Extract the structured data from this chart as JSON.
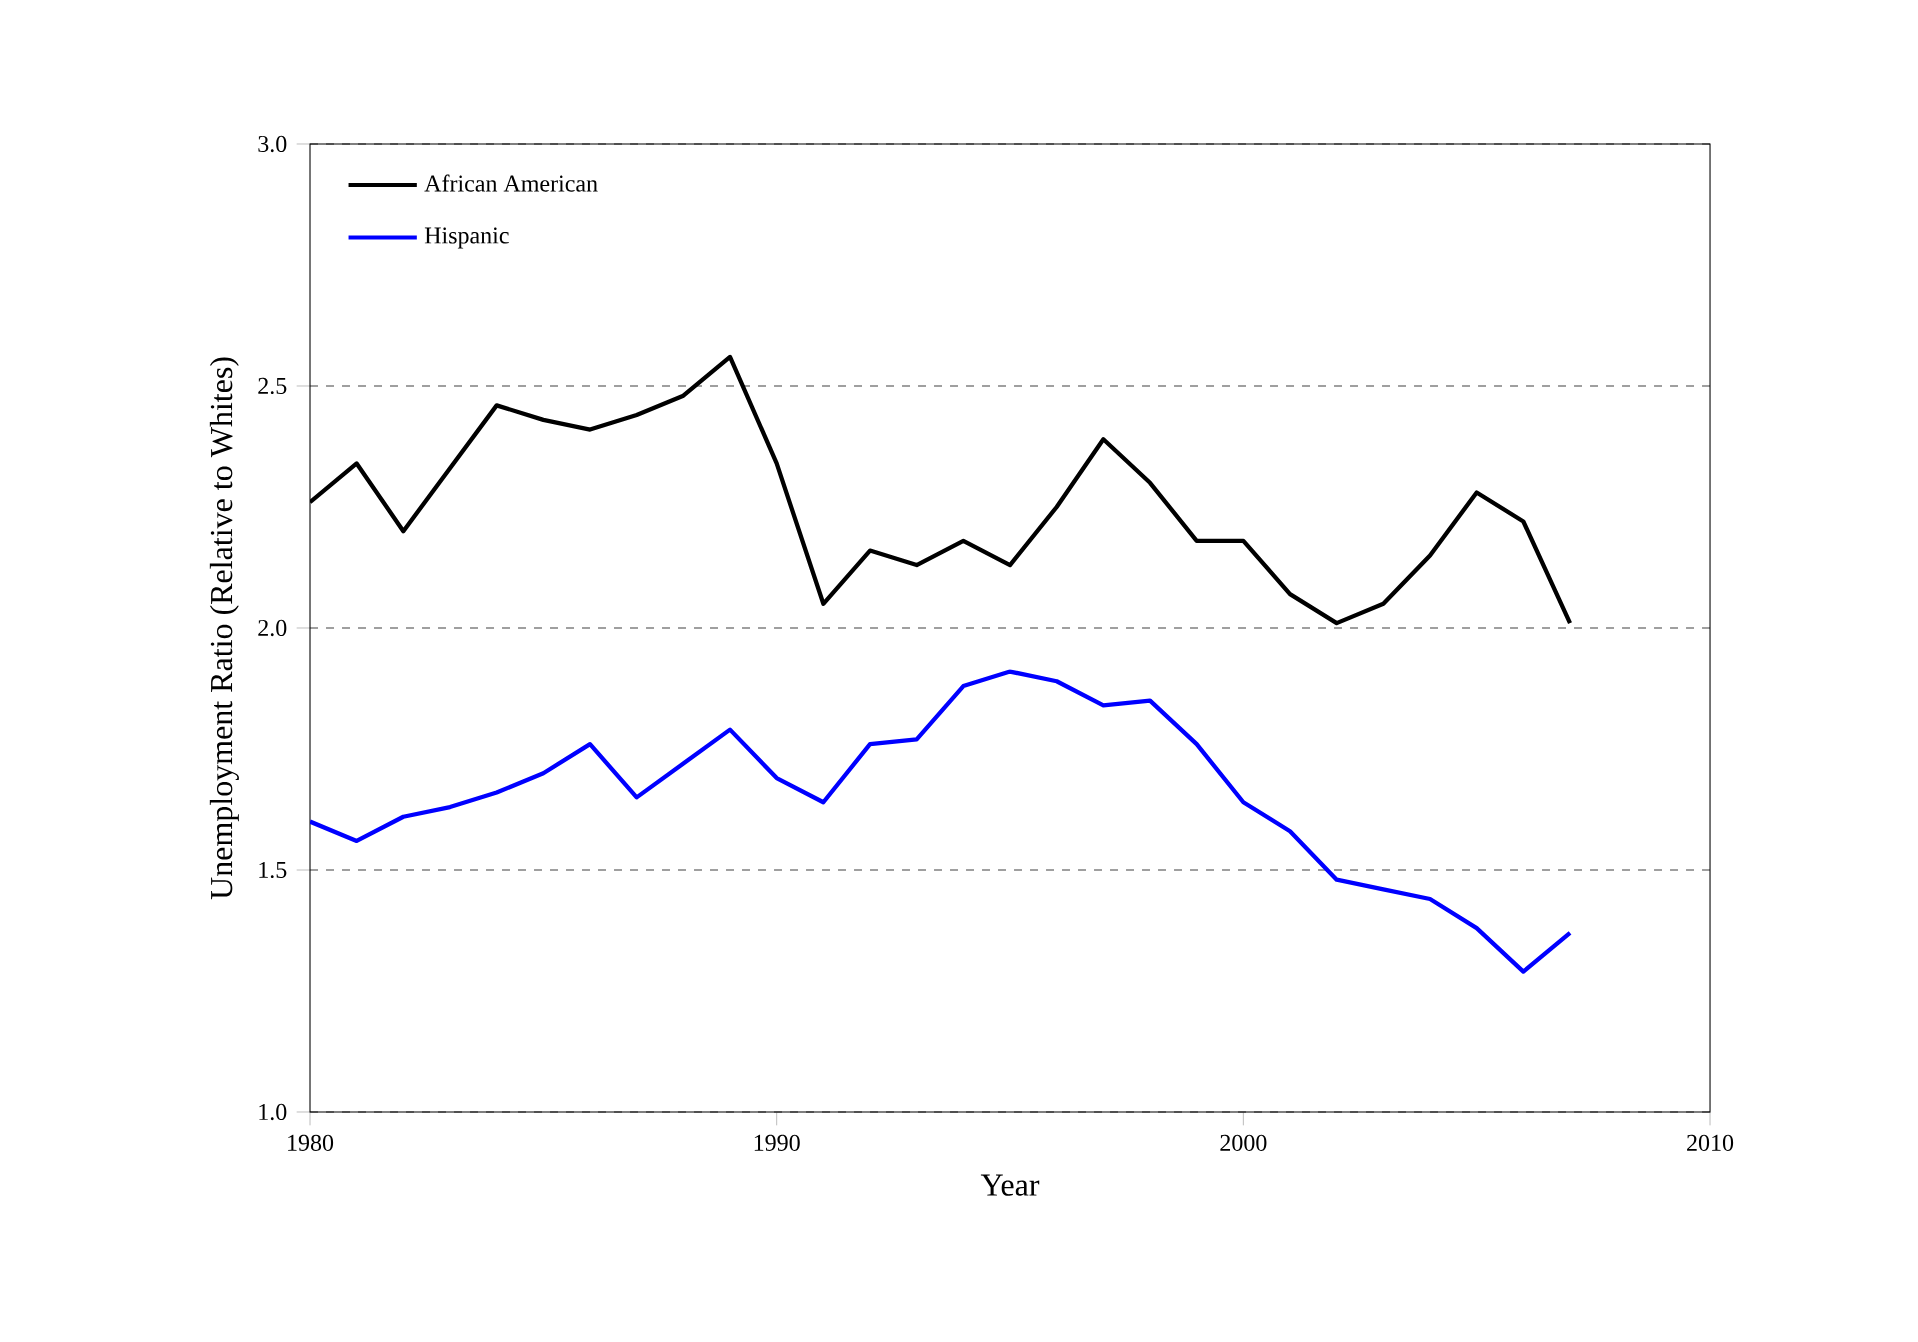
{
  "chart_data": {
    "type": "line",
    "xlabel": "Year",
    "ylabel": "Unemployment Ratio (Relative to Whites)",
    "x": [
      1980,
      1981,
      1982,
      1983,
      1984,
      1985,
      1986,
      1987,
      1988,
      1989,
      1990,
      1991,
      1992,
      1993,
      1994,
      1995,
      1996,
      1997,
      1998,
      1999,
      2000,
      2001,
      2002,
      2003,
      2004,
      2005,
      2006,
      2007
    ],
    "series": [
      {
        "name": "African American",
        "color": "#000000",
        "values": [
          2.26,
          2.34,
          2.2,
          2.33,
          2.46,
          2.43,
          2.41,
          2.44,
          2.48,
          2.56,
          2.34,
          2.05,
          2.16,
          2.13,
          2.18,
          2.13,
          2.25,
          2.39,
          2.3,
          2.18,
          2.18,
          2.07,
          2.01,
          2.05,
          2.15,
          2.28,
          2.22,
          2.01
        ]
      },
      {
        "name": "Hispanic",
        "color": "#0000ff",
        "values": [
          1.6,
          1.56,
          1.61,
          1.63,
          1.66,
          1.7,
          1.76,
          1.65,
          1.72,
          1.79,
          1.69,
          1.64,
          1.76,
          1.77,
          1.88,
          1.91,
          1.89,
          1.84,
          1.85,
          1.76,
          1.64,
          1.58,
          1.48,
          1.46,
          1.44,
          1.38,
          1.29,
          1.37
        ]
      }
    ],
    "xlim": [
      1980,
      2010
    ],
    "xticks": [
      1980,
      1990,
      2000,
      2010
    ],
    "ylim": [
      1.0,
      3.0
    ],
    "yticks": [
      {
        "value": 1.0,
        "label": "1.0"
      },
      {
        "value": 1.5,
        "label": "1.5"
      },
      {
        "value": 2.0,
        "label": "2.0"
      },
      {
        "value": 2.5,
        "label": "2.5"
      },
      {
        "value": 3.0,
        "label": "3.0"
      }
    ],
    "grid": "y",
    "legend": "top left",
    "marker": "none",
    "line_style": "solid"
  }
}
